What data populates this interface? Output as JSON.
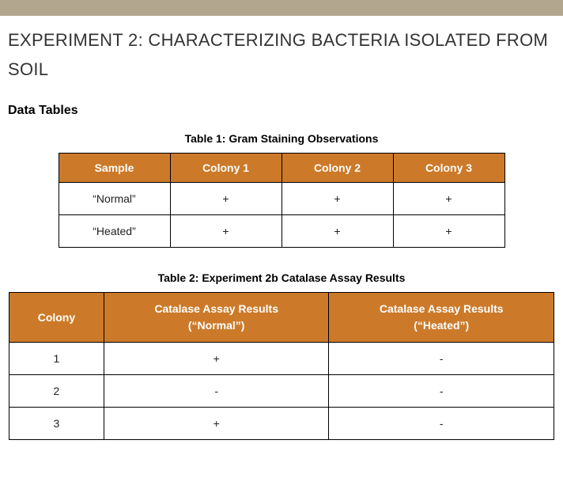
{
  "colors": {
    "top_bar": "#b3a68f",
    "table_header_bg": "#cc7a29",
    "table_header_text": "#ffffff",
    "table_border": "#000000",
    "body_bg": "#ffffff",
    "body_text": "#000000"
  },
  "title": "EXPERIMENT 2: CHARACTERIZING BACTERIA ISOLATED FROM SOIL",
  "section_heading": "Data Tables",
  "table1": {
    "caption": "Table 1: Gram Staining Observations",
    "columns": [
      "Sample",
      "Colony 1",
      "Colony 2",
      "Colony 3"
    ],
    "rows": [
      [
        "“Normal”",
        "+",
        "+",
        "+"
      ],
      [
        "“Heated”",
        "+",
        "+",
        "+"
      ]
    ]
  },
  "table2": {
    "caption": "Table 2: Experiment 2b Catalase Assay Results",
    "columns": [
      "Colony",
      "Catalase Assay Results (“Normal”)",
      "Catalase Assay Results (“Heated”)"
    ],
    "columns_line1": [
      "Colony",
      "Catalase Assay Results",
      "Catalase Assay Results"
    ],
    "columns_line2": [
      "",
      "(“Normal”)",
      "(“Heated”)"
    ],
    "rows": [
      [
        "1",
        "+",
        "-"
      ],
      [
        "2",
        "-",
        "-"
      ],
      [
        "3",
        "+",
        "-"
      ]
    ]
  }
}
